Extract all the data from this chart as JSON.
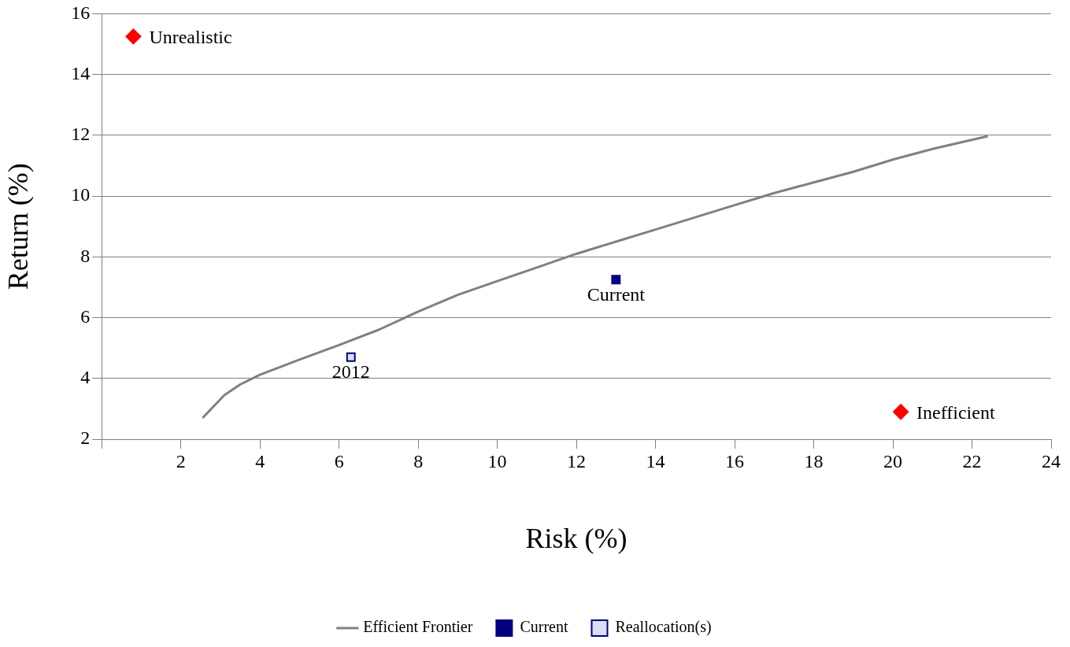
{
  "chart_data": {
    "type": "scatter",
    "xlabel": "Risk (%)",
    "ylabel": "Return (%)",
    "xlim": [
      0,
      24
    ],
    "xticks": [
      {
        "value": 0,
        "label": null
      },
      2,
      4,
      6,
      8,
      10,
      12,
      14,
      16,
      18,
      20,
      22,
      24
    ],
    "ylim": [
      2,
      16
    ],
    "yticks": [
      2,
      4,
      6,
      8,
      10,
      12,
      14,
      16
    ],
    "grid": "y",
    "legend": "bottom",
    "series": [
      {
        "name": "Efficient Frontier",
        "type": "line",
        "color": "#808080",
        "marker": "none",
        "x": [
          2.55,
          3.1,
          3.5,
          4,
          5,
          6,
          7,
          8,
          9,
          10,
          11,
          12,
          13,
          14,
          15,
          16,
          17,
          18,
          19,
          20,
          21,
          22.4
        ],
        "values": [
          2.7,
          3.45,
          3.8,
          4.12,
          4.62,
          5.1,
          5.6,
          6.2,
          6.75,
          7.2,
          7.65,
          8.1,
          8.5,
          8.9,
          9.3,
          9.7,
          10.1,
          10.45,
          10.8,
          11.2,
          11.55,
          11.97
        ]
      },
      {
        "name": "Current",
        "type": "scatter",
        "color": "#000080",
        "marker": "square",
        "x": [
          13
        ],
        "values": [
          7.25
        ]
      },
      {
        "name": "Reallocation(s)",
        "type": "scatter",
        "color": "#d9dff0",
        "marker": "square",
        "x": [
          6.3
        ],
        "values": [
          4.7
        ]
      },
      {
        "type": "scatter",
        "color": "#ff0000",
        "marker": "diamond",
        "x": [
          0.8,
          20.2
        ],
        "values": [
          15.25,
          2.9
        ]
      }
    ],
    "annotations": [
      {
        "text": "Unrealistic",
        "x": 0.8,
        "y": 15.25
      },
      {
        "text": "Inefficient",
        "x": 20.2,
        "y": 2.9
      },
      {
        "text": "Current",
        "x": 13,
        "y": 7.25
      },
      {
        "text": "2012",
        "x": 6.3,
        "y": 4.7
      }
    ]
  }
}
